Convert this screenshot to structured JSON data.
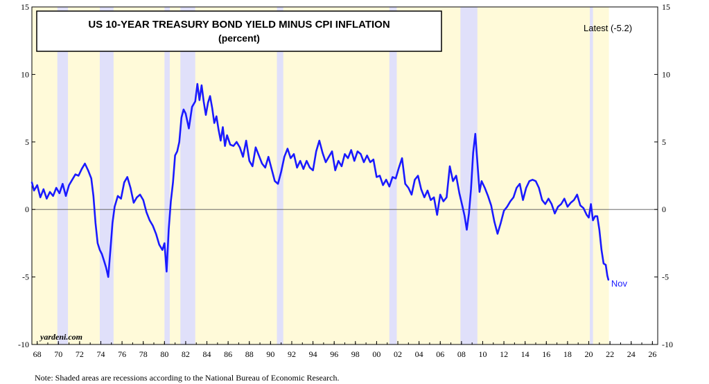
{
  "chart_data": {
    "type": "line",
    "title": "US 10-YEAR TREASURY BOND YIELD MINUS CPI INFLATION",
    "subtitle": "(percent)",
    "latest_label": "Latest (-5.2)",
    "end_label": "Nov",
    "source": "yardeni.com",
    "note": "Note: Shaded areas are recessions according to the National Bureau of Economic Research.",
    "xlim": [
      1967.5,
      2026.5
    ],
    "ylim": [
      -10,
      15
    ],
    "x_ticks": [
      {
        "value": 1968,
        "label": "68"
      },
      {
        "value": 1970,
        "label": "70"
      },
      {
        "value": 1972,
        "label": "72"
      },
      {
        "value": 1974,
        "label": "74"
      },
      {
        "value": 1976,
        "label": "76"
      },
      {
        "value": 1978,
        "label": "78"
      },
      {
        "value": 1980,
        "label": "80"
      },
      {
        "value": 1982,
        "label": "82"
      },
      {
        "value": 1984,
        "label": "84"
      },
      {
        "value": 1986,
        "label": "86"
      },
      {
        "value": 1988,
        "label": "88"
      },
      {
        "value": 1990,
        "label": "90"
      },
      {
        "value": 1992,
        "label": "92"
      },
      {
        "value": 1994,
        "label": "94"
      },
      {
        "value": 1996,
        "label": "96"
      },
      {
        "value": 1998,
        "label": "98"
      },
      {
        "value": 2000,
        "label": "00"
      },
      {
        "value": 2002,
        "label": "02"
      },
      {
        "value": 2004,
        "label": "04"
      },
      {
        "value": 2006,
        "label": "06"
      },
      {
        "value": 2008,
        "label": "08"
      },
      {
        "value": 2010,
        "label": "10"
      },
      {
        "value": 2012,
        "label": "12"
      },
      {
        "value": 2014,
        "label": "14"
      },
      {
        "value": 2016,
        "label": "16"
      },
      {
        "value": 2018,
        "label": "18"
      },
      {
        "value": 2020,
        "label": "20"
      },
      {
        "value": 2022,
        "label": "22"
      },
      {
        "value": 2024,
        "label": "24"
      },
      {
        "value": 2026,
        "label": "26"
      }
    ],
    "y_ticks": [
      {
        "value": 15,
        "label": "15"
      },
      {
        "value": 10,
        "label": "10"
      },
      {
        "value": 5,
        "label": "5"
      },
      {
        "value": 0,
        "label": "0"
      },
      {
        "value": -5,
        "label": "-5"
      },
      {
        "value": -10,
        "label": "-10"
      }
    ],
    "recessions": [
      [
        1969.9,
        1970.9
      ],
      [
        1973.9,
        1975.2
      ],
      [
        1980.0,
        1980.5
      ],
      [
        1981.5,
        1982.9
      ],
      [
        1990.6,
        1991.2
      ],
      [
        2001.2,
        2001.9
      ],
      [
        2007.9,
        2009.5
      ],
      [
        2020.1,
        2020.4
      ]
    ],
    "shaded_background_start": 1967.5,
    "shaded_background_end": 2021.9,
    "series": [
      {
        "name": "10-Year Treasury Yield minus CPI Inflation",
        "color": "#1a1aff",
        "x": [
          1967.5,
          1967.7,
          1968.0,
          1968.3,
          1968.6,
          1968.9,
          1969.2,
          1969.5,
          1969.8,
          1970.1,
          1970.4,
          1970.7,
          1971.0,
          1971.3,
          1971.6,
          1971.9,
          1972.2,
          1972.5,
          1972.8,
          1973.1,
          1973.3,
          1973.5,
          1973.7,
          1973.9,
          1974.1,
          1974.3,
          1974.5,
          1974.7,
          1974.9,
          1975.1,
          1975.3,
          1975.6,
          1975.9,
          1976.2,
          1976.5,
          1976.8,
          1977.1,
          1977.4,
          1977.7,
          1978.0,
          1978.3,
          1978.6,
          1978.9,
          1979.2,
          1979.5,
          1979.8,
          1980.0,
          1980.2,
          1980.4,
          1980.6,
          1980.8,
          1981.0,
          1981.2,
          1981.4,
          1981.6,
          1981.8,
          1982.0,
          1982.3,
          1982.6,
          1982.9,
          1983.1,
          1983.3,
          1983.5,
          1983.7,
          1983.9,
          1984.1,
          1984.3,
          1984.5,
          1984.7,
          1984.9,
          1985.1,
          1985.3,
          1985.5,
          1985.7,
          1985.9,
          1986.2,
          1986.5,
          1986.8,
          1987.1,
          1987.4,
          1987.7,
          1988.0,
          1988.3,
          1988.6,
          1988.9,
          1989.2,
          1989.5,
          1989.8,
          1990.1,
          1990.4,
          1990.7,
          1991.0,
          1991.3,
          1991.6,
          1991.9,
          1992.2,
          1992.5,
          1992.8,
          1993.1,
          1993.4,
          1993.7,
          1994.0,
          1994.3,
          1994.6,
          1994.9,
          1995.2,
          1995.5,
          1995.8,
          1996.1,
          1996.4,
          1996.7,
          1997.0,
          1997.3,
          1997.6,
          1997.9,
          1998.2,
          1998.5,
          1998.8,
          1999.1,
          1999.4,
          1999.7,
          2000.0,
          2000.3,
          2000.6,
          2000.9,
          2001.2,
          2001.5,
          2001.8,
          2002.1,
          2002.4,
          2002.7,
          2003.0,
          2003.3,
          2003.6,
          2003.9,
          2004.2,
          2004.5,
          2004.8,
          2005.1,
          2005.4,
          2005.7,
          2006.0,
          2006.3,
          2006.6,
          2006.9,
          2007.2,
          2007.5,
          2007.8,
          2008.1,
          2008.3,
          2008.5,
          2008.7,
          2008.9,
          2009.1,
          2009.3,
          2009.5,
          2009.7,
          2009.9,
          2010.2,
          2010.5,
          2010.8,
          2011.1,
          2011.4,
          2011.7,
          2012.0,
          2012.3,
          2012.6,
          2012.9,
          2013.2,
          2013.5,
          2013.8,
          2014.1,
          2014.4,
          2014.7,
          2015.0,
          2015.3,
          2015.6,
          2015.9,
          2016.2,
          2016.5,
          2016.8,
          2017.1,
          2017.4,
          2017.7,
          2018.0,
          2018.3,
          2018.6,
          2018.9,
          2019.2,
          2019.5,
          2019.8,
          2020.0,
          2020.2,
          2020.4,
          2020.6,
          2020.8,
          2021.0,
          2021.2,
          2021.4,
          2021.6,
          2021.75,
          2021.85
        ],
        "y": [
          2.0,
          1.4,
          1.8,
          0.9,
          1.5,
          0.8,
          1.3,
          1.0,
          1.6,
          1.2,
          1.9,
          1.0,
          1.8,
          2.2,
          2.6,
          2.5,
          3.0,
          3.4,
          2.9,
          2.3,
          1.0,
          -1.0,
          -2.5,
          -3.0,
          -3.3,
          -3.8,
          -4.3,
          -5.0,
          -3.0,
          -1.0,
          0.2,
          1.0,
          0.8,
          2.0,
          2.4,
          1.6,
          0.5,
          0.9,
          1.1,
          0.7,
          -0.2,
          -0.8,
          -1.2,
          -1.8,
          -2.6,
          -3.0,
          -2.5,
          -4.6,
          -1.5,
          0.6,
          2.0,
          4.0,
          4.3,
          5.0,
          6.8,
          7.4,
          7.1,
          6.0,
          7.6,
          8.0,
          9.3,
          8.1,
          9.2,
          8.0,
          7.0,
          7.9,
          8.4,
          7.5,
          6.4,
          6.9,
          5.9,
          5.1,
          6.1,
          4.7,
          5.5,
          4.8,
          4.7,
          5.0,
          4.6,
          3.9,
          5.1,
          3.6,
          3.2,
          4.6,
          4.0,
          3.4,
          3.1,
          3.9,
          3.0,
          2.1,
          1.9,
          2.8,
          3.9,
          4.5,
          3.8,
          4.1,
          3.1,
          3.6,
          3.0,
          3.6,
          3.1,
          2.9,
          4.3,
          5.1,
          4.2,
          3.5,
          3.9,
          4.3,
          2.9,
          3.6,
          3.2,
          4.1,
          3.8,
          4.4,
          3.6,
          4.3,
          4.1,
          3.5,
          4.0,
          3.5,
          3.7,
          2.4,
          2.5,
          1.8,
          2.2,
          1.7,
          2.4,
          2.3,
          3.1,
          3.8,
          1.9,
          1.6,
          1.1,
          2.2,
          2.5,
          1.5,
          0.9,
          1.4,
          0.7,
          0.9,
          -0.4,
          1.1,
          0.6,
          0.9,
          3.2,
          2.1,
          2.5,
          1.2,
          0.2,
          -0.5,
          -1.5,
          -0.3,
          1.5,
          4.2,
          5.6,
          3.5,
          1.3,
          2.1,
          1.6,
          1.0,
          0.3,
          -0.9,
          -1.8,
          -1.0,
          -0.1,
          0.2,
          0.6,
          0.9,
          1.6,
          1.9,
          0.7,
          1.6,
          2.1,
          2.2,
          2.1,
          1.6,
          0.7,
          0.4,
          0.8,
          0.4,
          -0.3,
          0.2,
          0.4,
          0.8,
          0.2,
          0.5,
          0.7,
          1.1,
          0.3,
          0.1,
          -0.4,
          -0.6,
          0.4,
          -0.8,
          -0.5,
          -0.5,
          -1.5,
          -3.0,
          -4.0,
          -4.1,
          -4.9,
          -5.2
        ]
      }
    ]
  }
}
